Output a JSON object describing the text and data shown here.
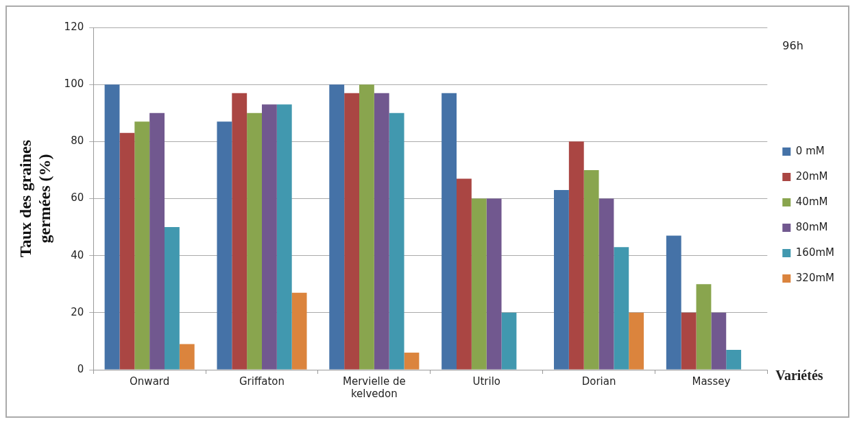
{
  "chart_data": {
    "type": "bar",
    "xlabel": "Variétés",
    "ylabel": "Taux des graines germées (%)",
    "annotations": [
      "96h"
    ],
    "categories": [
      "Onward",
      "Griffaton",
      "Mervielle de kelvedon",
      "Utrilo",
      "Dorian",
      "Massey"
    ],
    "series": [
      {
        "name": "0 mM",
        "color": "#4572a7",
        "values": [
          100,
          87,
          100,
          97,
          63,
          47
        ]
      },
      {
        "name": "20mM",
        "color": "#aa4643",
        "values": [
          83,
          97,
          97,
          67,
          80,
          20
        ]
      },
      {
        "name": "40mM",
        "color": "#89a54e",
        "values": [
          87,
          90,
          100,
          60,
          70,
          30
        ]
      },
      {
        "name": "80mM",
        "color": "#71588f",
        "values": [
          90,
          93,
          97,
          60,
          60,
          20
        ]
      },
      {
        "name": "160mM",
        "color": "#4198af",
        "values": [
          50,
          93,
          90,
          20,
          43,
          7
        ]
      },
      {
        "name": "320mM",
        "color": "#db843d",
        "values": [
          9,
          27,
          6,
          0,
          20,
          0
        ]
      }
    ],
    "ylim": [
      0,
      120
    ],
    "yticks": [
      0,
      20,
      40,
      60,
      80,
      100,
      120
    ],
    "grid": "y",
    "legend": "right"
  }
}
